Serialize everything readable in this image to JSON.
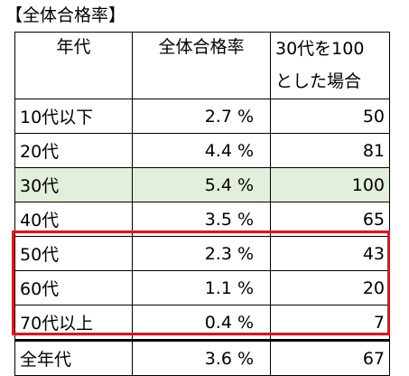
{
  "title": "【全体合格率】",
  "table": {
    "headers": {
      "generation": "年代",
      "rate": "全体合格率",
      "index_line1": "30代を100",
      "index_line2": "とした場合"
    },
    "rows": [
      {
        "generation": "10代以下",
        "rate": "2.7 %",
        "index": "50"
      },
      {
        "generation": "20代",
        "rate": "4.4 %",
        "index": "81"
      },
      {
        "generation": "30代",
        "rate": "5.4 %",
        "index": "100"
      },
      {
        "generation": "40代",
        "rate": "3.5 %",
        "index": "65"
      },
      {
        "generation": "50代",
        "rate": "2.3 %",
        "index": "43"
      },
      {
        "generation": "60代",
        "rate": "1.1 %",
        "index": "20"
      },
      {
        "generation": "70代以上",
        "rate": "0.4 %",
        "index": "7"
      },
      {
        "generation": "全年代",
        "rate": "3.6 %",
        "index": "67"
      }
    ]
  },
  "colors": {
    "highlight_row": "#e2efda",
    "emphasis_box": "#e8101a"
  }
}
